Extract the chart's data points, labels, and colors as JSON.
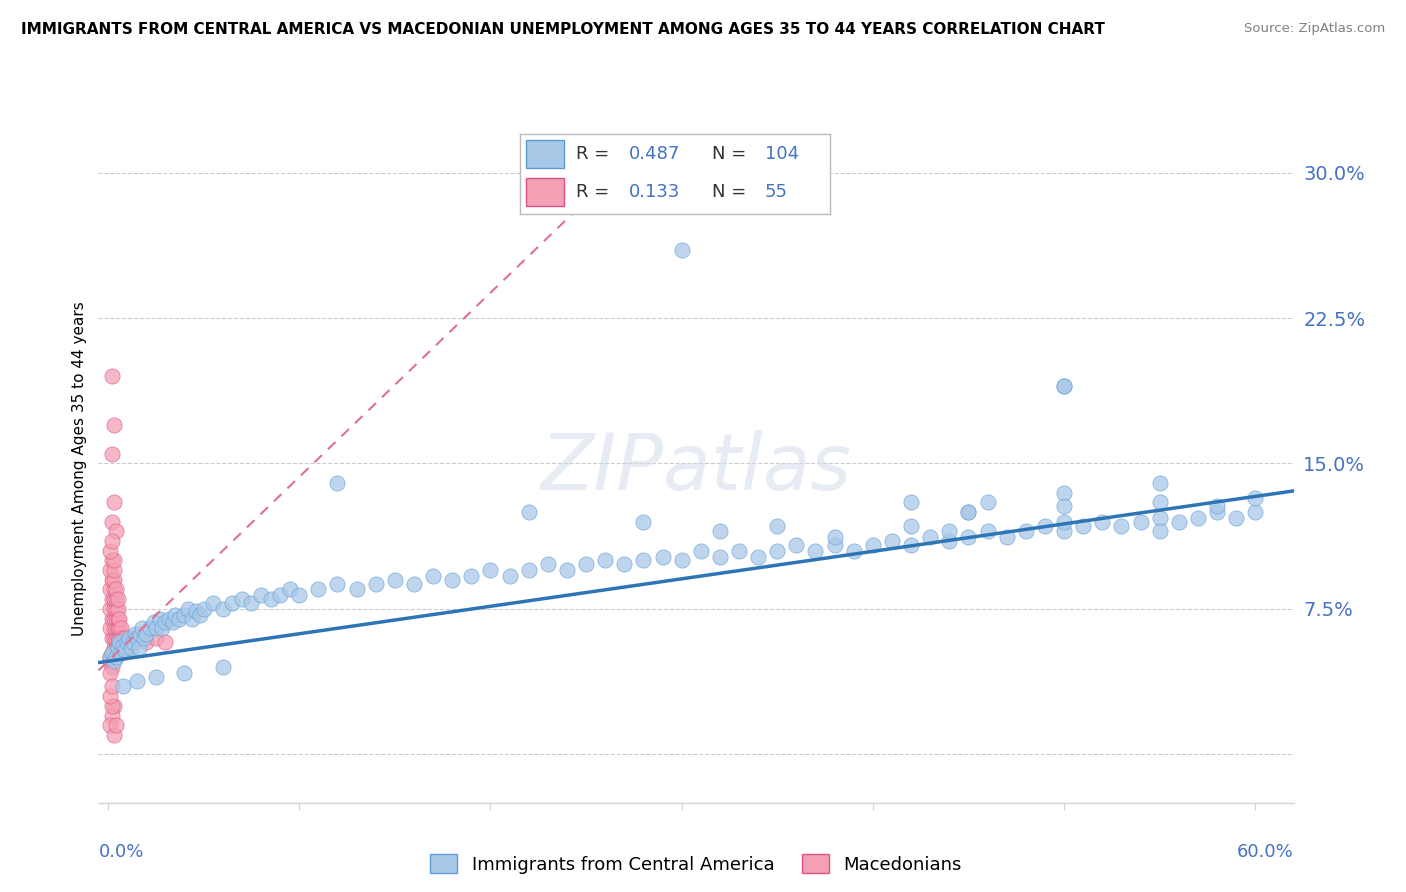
{
  "title": "IMMIGRANTS FROM CENTRAL AMERICA VS MACEDONIAN UNEMPLOYMENT AMONG AGES 35 TO 44 YEARS CORRELATION CHART",
  "source": "Source: ZipAtlas.com",
  "ylabel": "Unemployment Among Ages 35 to 44 years",
  "yticks": [
    0.0,
    0.075,
    0.15,
    0.225,
    0.3
  ],
  "ytick_labels": [
    "",
    "7.5%",
    "15.0%",
    "22.5%",
    "30.0%"
  ],
  "xlim": [
    -0.005,
    0.62
  ],
  "ylim": [
    -0.025,
    0.32
  ],
  "color_blue_scatter": "#a8c8e8",
  "color_blue_edge": "#5b9bd5",
  "color_pink_scatter": "#f4a0b5",
  "color_pink_edge": "#e05080",
  "color_trendline_blue": "#2e75b6",
  "color_trendline_pink": "#e07090",
  "color_axis_text": "#4472c4",
  "watermark": "ZIPatlas",
  "trendline_blue": [
    [
      0.0,
      0.048
    ],
    [
      0.6,
      0.133
    ]
  ],
  "trendline_pink": [
    [
      0.0,
      0.048
    ],
    [
      0.06,
      0.105
    ]
  ],
  "blue_scatter": [
    [
      0.001,
      0.05
    ],
    [
      0.002,
      0.052
    ],
    [
      0.003,
      0.048
    ],
    [
      0.004,
      0.05
    ],
    [
      0.005,
      0.055
    ],
    [
      0.006,
      0.058
    ],
    [
      0.007,
      0.052
    ],
    [
      0.008,
      0.056
    ],
    [
      0.009,
      0.054
    ],
    [
      0.01,
      0.058
    ],
    [
      0.011,
      0.06
    ],
    [
      0.012,
      0.055
    ],
    [
      0.013,
      0.058
    ],
    [
      0.014,
      0.062
    ],
    [
      0.015,
      0.06
    ],
    [
      0.016,
      0.055
    ],
    [
      0.017,
      0.062
    ],
    [
      0.018,
      0.065
    ],
    [
      0.019,
      0.06
    ],
    [
      0.02,
      0.062
    ],
    [
      0.022,
      0.065
    ],
    [
      0.024,
      0.068
    ],
    [
      0.025,
      0.065
    ],
    [
      0.027,
      0.07
    ],
    [
      0.028,
      0.065
    ],
    [
      0.03,
      0.068
    ],
    [
      0.032,
      0.07
    ],
    [
      0.034,
      0.068
    ],
    [
      0.035,
      0.072
    ],
    [
      0.037,
      0.07
    ],
    [
      0.04,
      0.072
    ],
    [
      0.042,
      0.075
    ],
    [
      0.044,
      0.07
    ],
    [
      0.046,
      0.074
    ],
    [
      0.048,
      0.072
    ],
    [
      0.05,
      0.075
    ],
    [
      0.055,
      0.078
    ],
    [
      0.06,
      0.075
    ],
    [
      0.065,
      0.078
    ],
    [
      0.07,
      0.08
    ],
    [
      0.075,
      0.078
    ],
    [
      0.08,
      0.082
    ],
    [
      0.085,
      0.08
    ],
    [
      0.09,
      0.082
    ],
    [
      0.095,
      0.085
    ],
    [
      0.1,
      0.082
    ],
    [
      0.11,
      0.085
    ],
    [
      0.12,
      0.088
    ],
    [
      0.13,
      0.085
    ],
    [
      0.14,
      0.088
    ],
    [
      0.15,
      0.09
    ],
    [
      0.16,
      0.088
    ],
    [
      0.17,
      0.092
    ],
    [
      0.18,
      0.09
    ],
    [
      0.19,
      0.092
    ],
    [
      0.2,
      0.095
    ],
    [
      0.21,
      0.092
    ],
    [
      0.22,
      0.095
    ],
    [
      0.23,
      0.098
    ],
    [
      0.24,
      0.095
    ],
    [
      0.25,
      0.098
    ],
    [
      0.26,
      0.1
    ],
    [
      0.27,
      0.098
    ],
    [
      0.28,
      0.1
    ],
    [
      0.29,
      0.102
    ],
    [
      0.3,
      0.1
    ],
    [
      0.31,
      0.105
    ],
    [
      0.32,
      0.102
    ],
    [
      0.33,
      0.105
    ],
    [
      0.34,
      0.102
    ],
    [
      0.35,
      0.105
    ],
    [
      0.36,
      0.108
    ],
    [
      0.37,
      0.105
    ],
    [
      0.38,
      0.108
    ],
    [
      0.39,
      0.105
    ],
    [
      0.4,
      0.108
    ],
    [
      0.41,
      0.11
    ],
    [
      0.42,
      0.108
    ],
    [
      0.43,
      0.112
    ],
    [
      0.44,
      0.11
    ],
    [
      0.45,
      0.112
    ],
    [
      0.46,
      0.115
    ],
    [
      0.47,
      0.112
    ],
    [
      0.48,
      0.115
    ],
    [
      0.49,
      0.118
    ],
    [
      0.5,
      0.115
    ],
    [
      0.51,
      0.118
    ],
    [
      0.52,
      0.12
    ],
    [
      0.53,
      0.118
    ],
    [
      0.54,
      0.12
    ],
    [
      0.55,
      0.122
    ],
    [
      0.56,
      0.12
    ],
    [
      0.57,
      0.122
    ],
    [
      0.58,
      0.125
    ],
    [
      0.59,
      0.122
    ],
    [
      0.6,
      0.125
    ],
    [
      0.12,
      0.14
    ],
    [
      0.22,
      0.125
    ],
    [
      0.28,
      0.12
    ],
    [
      0.32,
      0.115
    ],
    [
      0.35,
      0.118
    ],
    [
      0.38,
      0.112
    ],
    [
      0.42,
      0.13
    ],
    [
      0.45,
      0.125
    ],
    [
      0.5,
      0.135
    ],
    [
      0.55,
      0.13
    ],
    [
      0.58,
      0.128
    ],
    [
      0.6,
      0.132
    ],
    [
      0.46,
      0.13
    ],
    [
      0.5,
      0.19
    ],
    [
      0.55,
      0.14
    ],
    [
      0.45,
      0.125
    ],
    [
      0.5,
      0.12
    ],
    [
      0.55,
      0.115
    ],
    [
      0.42,
      0.118
    ],
    [
      0.44,
      0.115
    ],
    [
      0.5,
      0.128
    ],
    [
      0.3,
      0.26
    ],
    [
      0.5,
      0.19
    ],
    [
      0.06,
      0.045
    ],
    [
      0.04,
      0.042
    ],
    [
      0.025,
      0.04
    ],
    [
      0.015,
      0.038
    ],
    [
      0.008,
      0.035
    ]
  ],
  "pink_scatter": [
    [
      0.001,
      0.05
    ],
    [
      0.002,
      0.052
    ],
    [
      0.001,
      0.048
    ],
    [
      0.002,
      0.045
    ],
    [
      0.001,
      0.042
    ],
    [
      0.002,
      0.06
    ],
    [
      0.001,
      0.065
    ],
    [
      0.002,
      0.07
    ],
    [
      0.001,
      0.075
    ],
    [
      0.002,
      0.08
    ],
    [
      0.001,
      0.085
    ],
    [
      0.002,
      0.09
    ],
    [
      0.001,
      0.095
    ],
    [
      0.002,
      0.1
    ],
    [
      0.003,
      0.055
    ],
    [
      0.003,
      0.06
    ],
    [
      0.003,
      0.065
    ],
    [
      0.003,
      0.07
    ],
    [
      0.003,
      0.075
    ],
    [
      0.003,
      0.08
    ],
    [
      0.003,
      0.085
    ],
    [
      0.003,
      0.09
    ],
    [
      0.003,
      0.095
    ],
    [
      0.003,
      0.1
    ],
    [
      0.004,
      0.055
    ],
    [
      0.004,
      0.06
    ],
    [
      0.004,
      0.065
    ],
    [
      0.004,
      0.07
    ],
    [
      0.004,
      0.075
    ],
    [
      0.004,
      0.08
    ],
    [
      0.004,
      0.085
    ],
    [
      0.005,
      0.055
    ],
    [
      0.005,
      0.06
    ],
    [
      0.005,
      0.065
    ],
    [
      0.005,
      0.07
    ],
    [
      0.005,
      0.075
    ],
    [
      0.005,
      0.08
    ],
    [
      0.006,
      0.055
    ],
    [
      0.006,
      0.06
    ],
    [
      0.006,
      0.065
    ],
    [
      0.006,
      0.07
    ],
    [
      0.007,
      0.055
    ],
    [
      0.007,
      0.06
    ],
    [
      0.007,
      0.065
    ],
    [
      0.008,
      0.055
    ],
    [
      0.008,
      0.06
    ],
    [
      0.009,
      0.055
    ],
    [
      0.009,
      0.06
    ],
    [
      0.01,
      0.055
    ],
    [
      0.012,
      0.058
    ],
    [
      0.015,
      0.06
    ],
    [
      0.02,
      0.058
    ],
    [
      0.025,
      0.06
    ],
    [
      0.03,
      0.058
    ],
    [
      0.002,
      0.195
    ],
    [
      0.003,
      0.17
    ],
    [
      0.002,
      0.155
    ],
    [
      0.003,
      0.13
    ],
    [
      0.002,
      0.12
    ],
    [
      0.004,
      0.115
    ],
    [
      0.001,
      0.105
    ],
    [
      0.002,
      0.11
    ],
    [
      0.003,
      0.025
    ],
    [
      0.002,
      0.02
    ],
    [
      0.001,
      0.015
    ],
    [
      0.003,
      0.01
    ],
    [
      0.004,
      0.015
    ],
    [
      0.002,
      0.025
    ],
    [
      0.001,
      0.03
    ],
    [
      0.002,
      0.035
    ]
  ]
}
